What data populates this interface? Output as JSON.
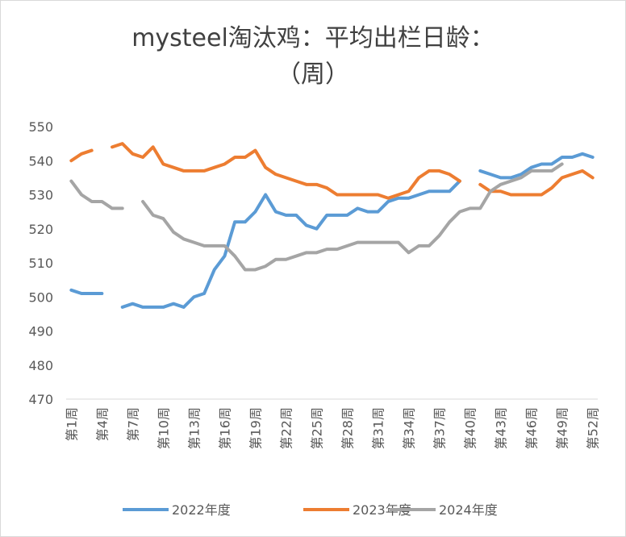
{
  "chart_data": {
    "type": "line",
    "title": [
      "mysteel淘汰鸡：平均出栏日龄：",
      "（周）"
    ],
    "categories": [
      "第1周",
      null,
      null,
      "第4周",
      null,
      null,
      "第7周",
      null,
      null,
      "第10周",
      null,
      null,
      "第13周",
      null,
      null,
      "第16周",
      null,
      null,
      "第19周",
      null,
      null,
      "第22周",
      null,
      null,
      "第25周",
      null,
      null,
      "第28周",
      null,
      null,
      "第31周",
      null,
      null,
      "第34周",
      null,
      null,
      "第37周",
      null,
      null,
      "第40周",
      null,
      null,
      "第43周",
      null,
      null,
      "第46周",
      null,
      null,
      "第49周",
      null,
      null,
      "第52周"
    ],
    "series": [
      {
        "name": "2022年度",
        "color": "#5b9bd5",
        "values": [
          502,
          501,
          501,
          501,
          null,
          497,
          498,
          497,
          497,
          497,
          498,
          497,
          500,
          501,
          508,
          512,
          522,
          522,
          525,
          530,
          525,
          524,
          524,
          521,
          520,
          524,
          524,
          524,
          526,
          525,
          525,
          528,
          529,
          529,
          530,
          531,
          531,
          531,
          534,
          null,
          537,
          536,
          535,
          535,
          536,
          538,
          539,
          539,
          541,
          541,
          542,
          541
        ]
      },
      {
        "name": "2023年度",
        "color": "#ed7d31",
        "values": [
          540,
          542,
          543,
          null,
          544,
          545,
          542,
          541,
          544,
          539,
          538,
          537,
          537,
          537,
          538,
          539,
          541,
          541,
          543,
          538,
          536,
          535,
          534,
          533,
          533,
          532,
          530,
          530,
          530,
          530,
          530,
          529,
          530,
          531,
          535,
          537,
          537,
          536,
          534,
          null,
          533,
          531,
          531,
          530,
          530,
          530,
          530,
          532,
          535,
          536,
          537,
          535
        ]
      },
      {
        "name": "2024年度",
        "color": "#a5a5a5",
        "values": [
          534,
          530,
          528,
          528,
          526,
          526,
          null,
          528,
          524,
          523,
          519,
          517,
          516,
          515,
          515,
          515,
          512,
          508,
          508,
          509,
          511,
          511,
          512,
          513,
          513,
          514,
          514,
          515,
          516,
          516,
          516,
          516,
          516,
          513,
          515,
          515,
          518,
          522,
          525,
          526,
          526,
          531,
          533,
          534,
          535,
          537,
          537,
          537,
          539,
          null,
          null,
          null
        ]
      }
    ],
    "ylim": [
      470,
      550
    ],
    "yticks": [
      470,
      480,
      490,
      500,
      510,
      520,
      530,
      540,
      550
    ],
    "grid": false
  }
}
